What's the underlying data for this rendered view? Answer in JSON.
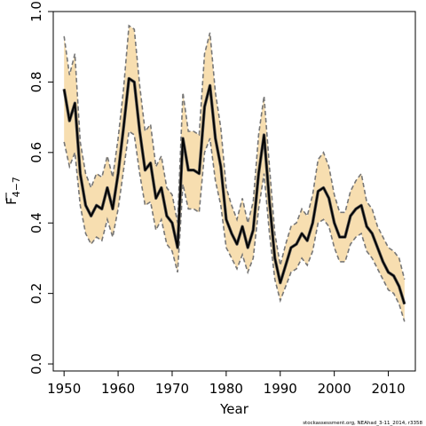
{
  "chart_data": {
    "type": "line",
    "xlabel": "Year",
    "ylabel": "F",
    "ylabel_subscript": "4−7",
    "xlim": [
      1948,
      2015
    ],
    "ylim": [
      -0.02,
      1.0
    ],
    "xticks": [
      1950,
      1960,
      1970,
      1980,
      1990,
      2000,
      2010
    ],
    "xtick_labels": [
      "1950",
      "1960",
      "1970",
      "1980",
      "1990",
      "2000",
      "2010"
    ],
    "yticks": [
      0.0,
      0.2,
      0.4,
      0.6,
      0.8,
      1.0
    ],
    "ytick_labels": [
      "0.0",
      "0.2",
      "0.4",
      "0.6",
      "0.8",
      "1.0"
    ],
    "grid": false,
    "colors": {
      "band": "#f7deb0",
      "bound_line": "#777777",
      "estimate_line": "#000000"
    },
    "x": [
      1950,
      1951,
      1952,
      1953,
      1954,
      1955,
      1956,
      1957,
      1958,
      1959,
      1960,
      1961,
      1962,
      1963,
      1964,
      1965,
      1966,
      1967,
      1968,
      1969,
      1970,
      1971,
      1972,
      1973,
      1974,
      1975,
      1976,
      1977,
      1978,
      1979,
      1980,
      1981,
      1982,
      1983,
      1984,
      1985,
      1986,
      1987,
      1988,
      1989,
      1990,
      1991,
      1992,
      1993,
      1994,
      1995,
      1996,
      1997,
      1998,
      1999,
      2000,
      2001,
      2002,
      2003,
      2004,
      2005,
      2006,
      2007,
      2008,
      2009,
      2010,
      2011,
      2012,
      2013
    ],
    "series": [
      {
        "role": "estimate",
        "values": [
          0.78,
          0.69,
          0.74,
          0.54,
          0.45,
          0.42,
          0.45,
          0.44,
          0.5,
          0.44,
          0.54,
          0.67,
          0.81,
          0.8,
          0.66,
          0.55,
          0.57,
          0.47,
          0.5,
          0.42,
          0.4,
          0.33,
          0.64,
          0.55,
          0.55,
          0.54,
          0.73,
          0.79,
          0.64,
          0.56,
          0.41,
          0.37,
          0.34,
          0.39,
          0.33,
          0.38,
          0.54,
          0.65,
          0.46,
          0.3,
          0.23,
          0.28,
          0.33,
          0.34,
          0.37,
          0.35,
          0.4,
          0.49,
          0.5,
          0.47,
          0.4,
          0.36,
          0.36,
          0.42,
          0.44,
          0.45,
          0.39,
          0.37,
          0.33,
          0.29,
          0.26,
          0.25,
          0.22,
          0.17
        ]
      },
      {
        "role": "upper",
        "values": [
          0.93,
          0.82,
          0.88,
          0.63,
          0.54,
          0.5,
          0.54,
          0.53,
          0.59,
          0.53,
          0.64,
          0.78,
          0.96,
          0.95,
          0.79,
          0.66,
          0.68,
          0.56,
          0.59,
          0.5,
          0.48,
          0.4,
          0.77,
          0.66,
          0.66,
          0.65,
          0.88,
          0.94,
          0.77,
          0.67,
          0.5,
          0.45,
          0.41,
          0.47,
          0.4,
          0.46,
          0.65,
          0.76,
          0.56,
          0.37,
          0.28,
          0.34,
          0.39,
          0.4,
          0.44,
          0.42,
          0.48,
          0.58,
          0.6,
          0.56,
          0.48,
          0.43,
          0.43,
          0.49,
          0.52,
          0.54,
          0.46,
          0.44,
          0.39,
          0.36,
          0.33,
          0.32,
          0.3,
          0.24
        ]
      },
      {
        "role": "lower",
        "values": [
          0.63,
          0.56,
          0.6,
          0.45,
          0.37,
          0.34,
          0.36,
          0.35,
          0.41,
          0.36,
          0.44,
          0.55,
          0.66,
          0.65,
          0.54,
          0.45,
          0.46,
          0.38,
          0.41,
          0.34,
          0.32,
          0.26,
          0.51,
          0.44,
          0.44,
          0.43,
          0.6,
          0.64,
          0.52,
          0.45,
          0.33,
          0.3,
          0.27,
          0.31,
          0.26,
          0.3,
          0.44,
          0.54,
          0.37,
          0.24,
          0.18,
          0.22,
          0.26,
          0.27,
          0.3,
          0.28,
          0.32,
          0.4,
          0.41,
          0.39,
          0.33,
          0.29,
          0.29,
          0.34,
          0.36,
          0.37,
          0.32,
          0.3,
          0.27,
          0.24,
          0.21,
          0.2,
          0.17,
          0.12
        ]
      }
    ]
  },
  "footer": {
    "credit": "stockassessment.org, NEAhad_3-11_2014, r3358"
  }
}
